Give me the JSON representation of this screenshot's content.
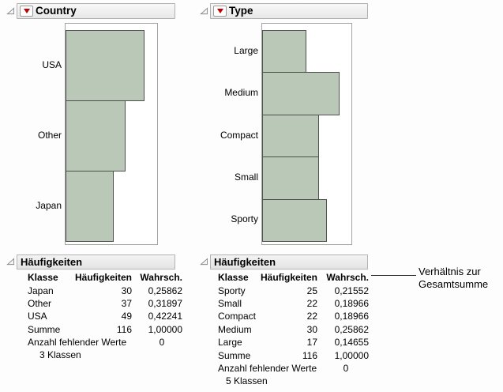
{
  "colors": {
    "bar_fill": "#b9c8b7",
    "bar_border": "#4f4f4f",
    "frame_border": "#a3a3a3",
    "header_bg": "#ececec",
    "menu_red": "#c00000"
  },
  "panels": [
    {
      "title": "Country",
      "chart_data": {
        "type": "bar",
        "orientation": "horizontal",
        "title": "Country",
        "categories": [
          "USA",
          "Other",
          "Japan"
        ],
        "values": [
          49,
          37,
          30
        ],
        "total": 116,
        "grid": false,
        "axis_ticks": "none"
      },
      "freq": {
        "title": "Häufigkeiten",
        "columns": {
          "klasse": "Klasse",
          "count": "Häufigkeiten",
          "prob": "Wahrsch."
        },
        "rows": [
          {
            "klasse": "Japan",
            "count": "30",
            "prob": "0,25862"
          },
          {
            "klasse": "Other",
            "count": "37",
            "prob": "0,31897"
          },
          {
            "klasse": "USA",
            "count": "49",
            "prob": "0,42241"
          },
          {
            "klasse": "Summe",
            "count": "116",
            "prob": "1,00000"
          }
        ],
        "missing_label": "Anzahl fehlender Werte",
        "missing_value": "0",
        "levels_text": "3  Klassen"
      }
    },
    {
      "title": "Type",
      "chart_data": {
        "type": "bar",
        "orientation": "horizontal",
        "title": "Type",
        "categories": [
          "Large",
          "Medium",
          "Compact",
          "Small",
          "Sporty"
        ],
        "values": [
          17,
          30,
          22,
          22,
          25
        ],
        "total": 116,
        "grid": false,
        "axis_ticks": "none"
      },
      "freq": {
        "title": "Häufigkeiten",
        "columns": {
          "klasse": "Klasse",
          "count": "Häufigkeiten",
          "prob": "Wahrsch."
        },
        "rows": [
          {
            "klasse": "Sporty",
            "count": "25",
            "prob": "0,21552"
          },
          {
            "klasse": "Small",
            "count": "22",
            "prob": "0,18966"
          },
          {
            "klasse": "Compact",
            "count": "22",
            "prob": "0,18966"
          },
          {
            "klasse": "Medium",
            "count": "30",
            "prob": "0,25862"
          },
          {
            "klasse": "Large",
            "count": "17",
            "prob": "0,14655"
          },
          {
            "klasse": "Summe",
            "count": "116",
            "prob": "1,00000"
          }
        ],
        "missing_label": "Anzahl fehlender Werte",
        "missing_value": "0",
        "levels_text": "5  Klassen"
      }
    }
  ],
  "annotation": {
    "line1": "Verhältnis zur",
    "line2": "Gesamtsumme"
  }
}
